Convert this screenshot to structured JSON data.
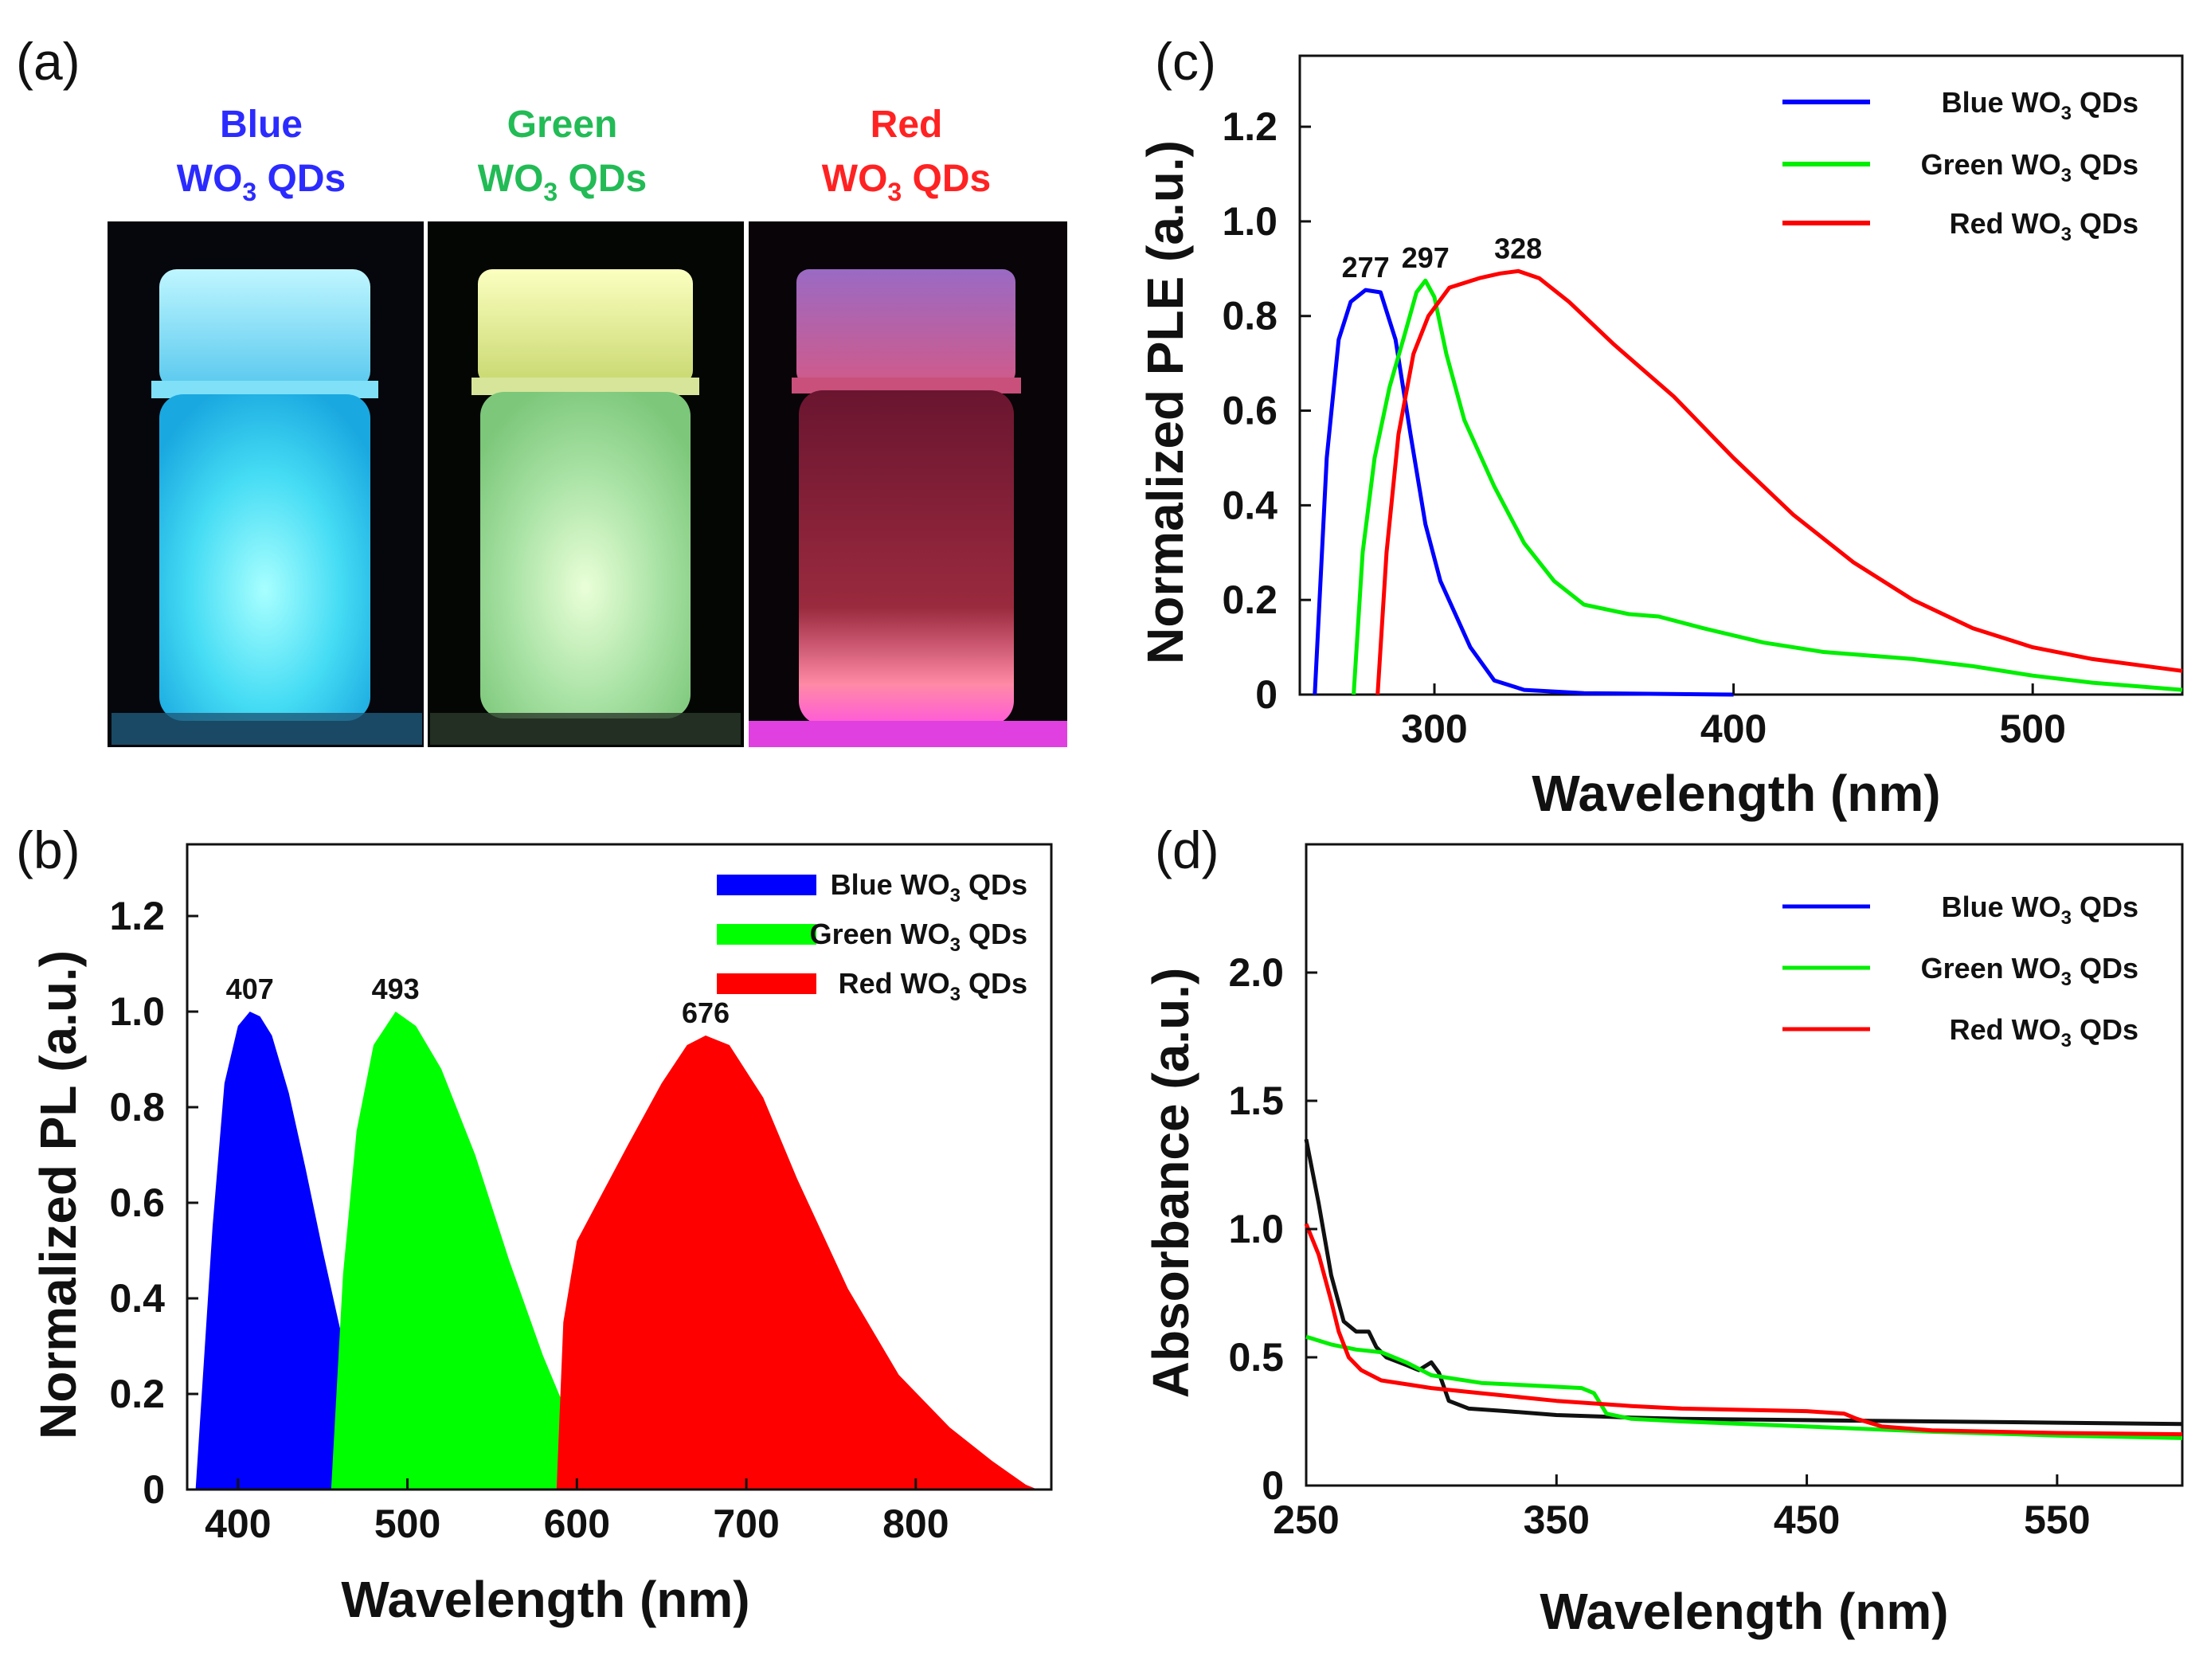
{
  "panel_labels": [
    "(a)",
    "(b)",
    "(c)",
    "(d)"
  ],
  "vials": [
    {
      "name": "Blue",
      "formula": "WO",
      "sub": "3",
      "suffix": " QDs",
      "color": "#2b2bff"
    },
    {
      "name": "Green",
      "formula": "WO",
      "sub": "3",
      "suffix": " QDs",
      "color": "#22bb55"
    },
    {
      "name": "Red",
      "formula": "WO",
      "sub": "3",
      "suffix": " QDs",
      "color": "#ff2222"
    }
  ],
  "legend_names": [
    "Blue WO",
    "Green WO",
    "Red WO"
  ],
  "legend_sub": "3",
  "legend_suffix": " QDs",
  "chart_data": [
    {
      "id": "b",
      "type": "area",
      "xlabel": "Wavelength (nm)",
      "ylabel": "Normalized PL (a.u.)",
      "xlim": [
        370,
        880
      ],
      "ylim": [
        0,
        1.35
      ],
      "xticks": [
        "400",
        "500",
        "600",
        "700",
        "800"
      ],
      "yticks": [
        "0",
        "0.2",
        "0.4",
        "0.6",
        "0.8",
        "1.0",
        "1.2"
      ],
      "series": [
        {
          "name": "Blue WO3 QDs",
          "color": "#0000ff",
          "x": [
            375,
            385,
            392,
            400,
            407,
            413,
            420,
            430,
            440,
            450,
            460,
            470,
            480,
            490,
            497
          ],
          "y": [
            0,
            0.55,
            0.85,
            0.97,
            1.0,
            0.99,
            0.95,
            0.83,
            0.67,
            0.5,
            0.34,
            0.21,
            0.1,
            0.03,
            0
          ]
        },
        {
          "name": "Green WO3 QDs",
          "color": "#00ff00",
          "x": [
            455,
            462,
            470,
            480,
            493,
            505,
            520,
            540,
            560,
            580,
            600,
            615,
            622
          ],
          "y": [
            0,
            0.45,
            0.75,
            0.93,
            1.0,
            0.97,
            0.88,
            0.7,
            0.48,
            0.28,
            0.11,
            0.02,
            0
          ]
        },
        {
          "name": "Red WO3 QDs",
          "color": "#ff0000",
          "x": [
            588,
            592,
            600,
            615,
            630,
            650,
            665,
            676,
            690,
            710,
            730,
            760,
            790,
            820,
            845,
            865,
            872
          ],
          "y": [
            0,
            0.35,
            0.52,
            0.62,
            0.72,
            0.85,
            0.93,
            0.95,
            0.93,
            0.82,
            0.65,
            0.42,
            0.24,
            0.13,
            0.06,
            0.01,
            0
          ]
        }
      ],
      "peak_labels": [
        {
          "text": "407",
          "x": 407,
          "y": 1.0
        },
        {
          "text": "493",
          "x": 493,
          "y": 1.0
        },
        {
          "text": "676",
          "x": 676,
          "y": 0.95
        }
      ]
    },
    {
      "id": "c",
      "type": "line",
      "xlabel": "Wavelength (nm)",
      "ylabel": "Normalized PLE (a.u.)",
      "xlim": [
        255,
        550
      ],
      "ylim": [
        0,
        1.35
      ],
      "xticks": [
        "300",
        "400",
        "500"
      ],
      "yticks": [
        "0",
        "0.2",
        "0.4",
        "0.6",
        "0.8",
        "1.0",
        "1.2"
      ],
      "series": [
        {
          "name": "Blue WO3 QDs",
          "color": "#0000ff",
          "x": [
            260,
            264,
            268,
            272,
            277,
            282,
            287,
            292,
            297,
            302,
            307,
            312,
            320,
            330,
            350,
            400
          ],
          "y": [
            0,
            0.5,
            0.75,
            0.83,
            0.855,
            0.85,
            0.75,
            0.55,
            0.36,
            0.24,
            0.17,
            0.1,
            0.03,
            0.01,
            0.003,
            0
          ]
        },
        {
          "name": "Green WO3 QDs",
          "color": "#00ee00",
          "x": [
            273,
            276,
            280,
            285,
            290,
            294,
            297,
            300,
            304,
            310,
            320,
            330,
            340,
            350,
            365,
            375,
            390,
            410,
            430,
            460,
            480,
            500,
            520,
            550
          ],
          "y": [
            0,
            0.3,
            0.5,
            0.65,
            0.76,
            0.85,
            0.875,
            0.84,
            0.72,
            0.58,
            0.44,
            0.32,
            0.24,
            0.19,
            0.17,
            0.165,
            0.14,
            0.11,
            0.09,
            0.075,
            0.06,
            0.04,
            0.025,
            0.01
          ]
        },
        {
          "name": "Red WO3 QDs",
          "color": "#ff0000",
          "x": [
            281,
            284,
            288,
            293,
            298,
            305,
            315,
            322,
            328,
            335,
            345,
            360,
            380,
            400,
            420,
            440,
            460,
            480,
            500,
            520,
            550
          ],
          "y": [
            0,
            0.3,
            0.55,
            0.72,
            0.8,
            0.86,
            0.88,
            0.89,
            0.895,
            0.88,
            0.83,
            0.74,
            0.63,
            0.5,
            0.38,
            0.28,
            0.2,
            0.14,
            0.1,
            0.075,
            0.05
          ]
        }
      ],
      "peak_labels": [
        {
          "text": "277",
          "x": 277,
          "y": 0.855
        },
        {
          "text": "297",
          "x": 297,
          "y": 0.875
        },
        {
          "text": "328",
          "x": 328,
          "y": 0.895
        }
      ]
    },
    {
      "id": "d",
      "type": "line",
      "xlabel": "Wavelength (nm)",
      "ylabel": "Absorbance (a.u.)",
      "xlim": [
        250,
        600
      ],
      "ylim": [
        0,
        2.5
      ],
      "xticks": [
        "250",
        "350",
        "450",
        "550"
      ],
      "yticks": [
        "0",
        "0.5",
        "1.0",
        "1.5",
        "2.0"
      ],
      "series": [
        {
          "name": "Blue WO3 QDs",
          "color": "#111111",
          "x": [
            250,
            255,
            260,
            265,
            270,
            275,
            278,
            282,
            290,
            295,
            300,
            303,
            307,
            315,
            330,
            350,
            380,
            400,
            450,
            500,
            550,
            600
          ],
          "y": [
            1.35,
            1.1,
            0.82,
            0.64,
            0.6,
            0.6,
            0.54,
            0.5,
            0.47,
            0.45,
            0.48,
            0.44,
            0.33,
            0.3,
            0.29,
            0.275,
            0.265,
            0.26,
            0.255,
            0.25,
            0.245,
            0.24
          ]
        },
        {
          "name": "Green WO3 QDs",
          "color": "#00ee00",
          "x": [
            250,
            260,
            270,
            280,
            290,
            300,
            320,
            340,
            360,
            365,
            370,
            380,
            400,
            450,
            500,
            550,
            600
          ],
          "y": [
            0.58,
            0.55,
            0.53,
            0.52,
            0.48,
            0.43,
            0.4,
            0.39,
            0.38,
            0.36,
            0.28,
            0.26,
            0.25,
            0.23,
            0.21,
            0.195,
            0.185
          ]
        },
        {
          "name": "Red WO3 QDs",
          "color": "#ff0000",
          "x": [
            250,
            255,
            260,
            263,
            267,
            272,
            280,
            300,
            320,
            350,
            380,
            400,
            450,
            465,
            470,
            480,
            500,
            550,
            600
          ],
          "y": [
            1.02,
            0.9,
            0.72,
            0.6,
            0.5,
            0.45,
            0.41,
            0.38,
            0.36,
            0.33,
            0.31,
            0.3,
            0.29,
            0.28,
            0.26,
            0.23,
            0.215,
            0.205,
            0.2
          ]
        }
      ],
      "peak_labels": []
    }
  ]
}
